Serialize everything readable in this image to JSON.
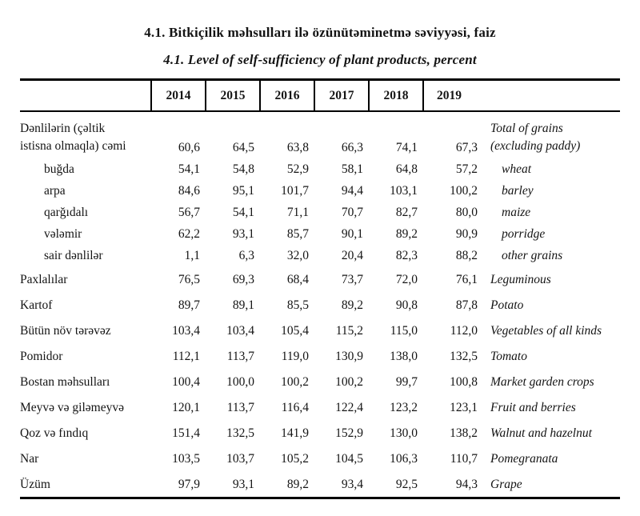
{
  "document": {
    "title_az": "4.1. Bitkiçilik məhsulları ilə özünütəminetmə səviyyəsi, faiz",
    "title_en": "4.1. Level of self-sufficiency of plant products, percent"
  },
  "table": {
    "years": [
      "2014",
      "2015",
      "2016",
      "2017",
      "2018",
      "2019"
    ],
    "rows": [
      {
        "az": "Dənlilərin (çəltik istisna olmaqla) cəmi",
        "az_line1": "Dənlilərin (çəltik",
        "az_line2": "istisna olmaqla) cəmi",
        "en": "Total of grains (excluding paddy)",
        "en_line1": "Total of grains",
        "en_line2": "(excluding paddy)",
        "v": [
          "60,6",
          "64,5",
          "63,8",
          "66,3",
          "74,1",
          "67,3"
        ]
      },
      {
        "az": "buğda",
        "en": "wheat",
        "v": [
          "54,1",
          "54,8",
          "52,9",
          "58,1",
          "64,8",
          "57,2"
        ]
      },
      {
        "az": "arpa",
        "en": "barley",
        "v": [
          "84,6",
          "95,1",
          "101,7",
          "94,4",
          "103,1",
          "100,2"
        ]
      },
      {
        "az": "qarğıdalı",
        "en": "maize",
        "v": [
          "56,7",
          "54,1",
          "71,1",
          "70,7",
          "82,7",
          "80,0"
        ]
      },
      {
        "az": "vələmir",
        "en": "porridge",
        "v": [
          "62,2",
          "93,1",
          "85,7",
          "90,1",
          "89,2",
          "90,9"
        ]
      },
      {
        "az": "sair dənlilər",
        "en": "other grains",
        "v": [
          "1,1",
          "6,3",
          "32,0",
          "20,4",
          "82,3",
          "88,2"
        ]
      },
      {
        "az": "Paxlalılar",
        "en": "Leguminous",
        "v": [
          "76,5",
          "69,3",
          "68,4",
          "73,7",
          "72,0",
          "76,1"
        ]
      },
      {
        "az": "Kartof",
        "en": "Potato",
        "v": [
          "89,7",
          "89,1",
          "85,5",
          "89,2",
          "90,8",
          "87,8"
        ]
      },
      {
        "az": "Bütün növ tərəvəz",
        "en": "Vegetables of all kinds",
        "v": [
          "103,4",
          "103,4",
          "105,4",
          "115,2",
          "115,0",
          "112,0"
        ]
      },
      {
        "az": "Pomidor",
        "en": "Tomato",
        "v": [
          "112,1",
          "113,7",
          "119,0",
          "130,9",
          "138,0",
          "132,5"
        ]
      },
      {
        "az": "Bostan məhsulları",
        "en": "Market garden crops",
        "v": [
          "100,4",
          "100,0",
          "100,2",
          "100,2",
          "99,7",
          "100,8"
        ]
      },
      {
        "az": "Meyvə və giləmeyvə",
        "en": "Fruit and berries",
        "v": [
          "120,1",
          "113,7",
          "116,4",
          "122,4",
          "123,2",
          "123,1"
        ]
      },
      {
        "az": "Qoz və fındıq",
        "en": "Walnut and hazelnut",
        "v": [
          "151,4",
          "132,5",
          "141,9",
          "152,9",
          "130,0",
          "138,2"
        ]
      },
      {
        "az": "Nar",
        "en": "Pomegranata",
        "v": [
          "103,5",
          "103,7",
          "105,2",
          "104,5",
          "106,3",
          "110,7"
        ]
      },
      {
        "az": "Üzüm",
        "en": "Grape",
        "v": [
          "97,9",
          "93,1",
          "89,2",
          "93,4",
          "92,5",
          "94,3"
        ]
      }
    ]
  }
}
